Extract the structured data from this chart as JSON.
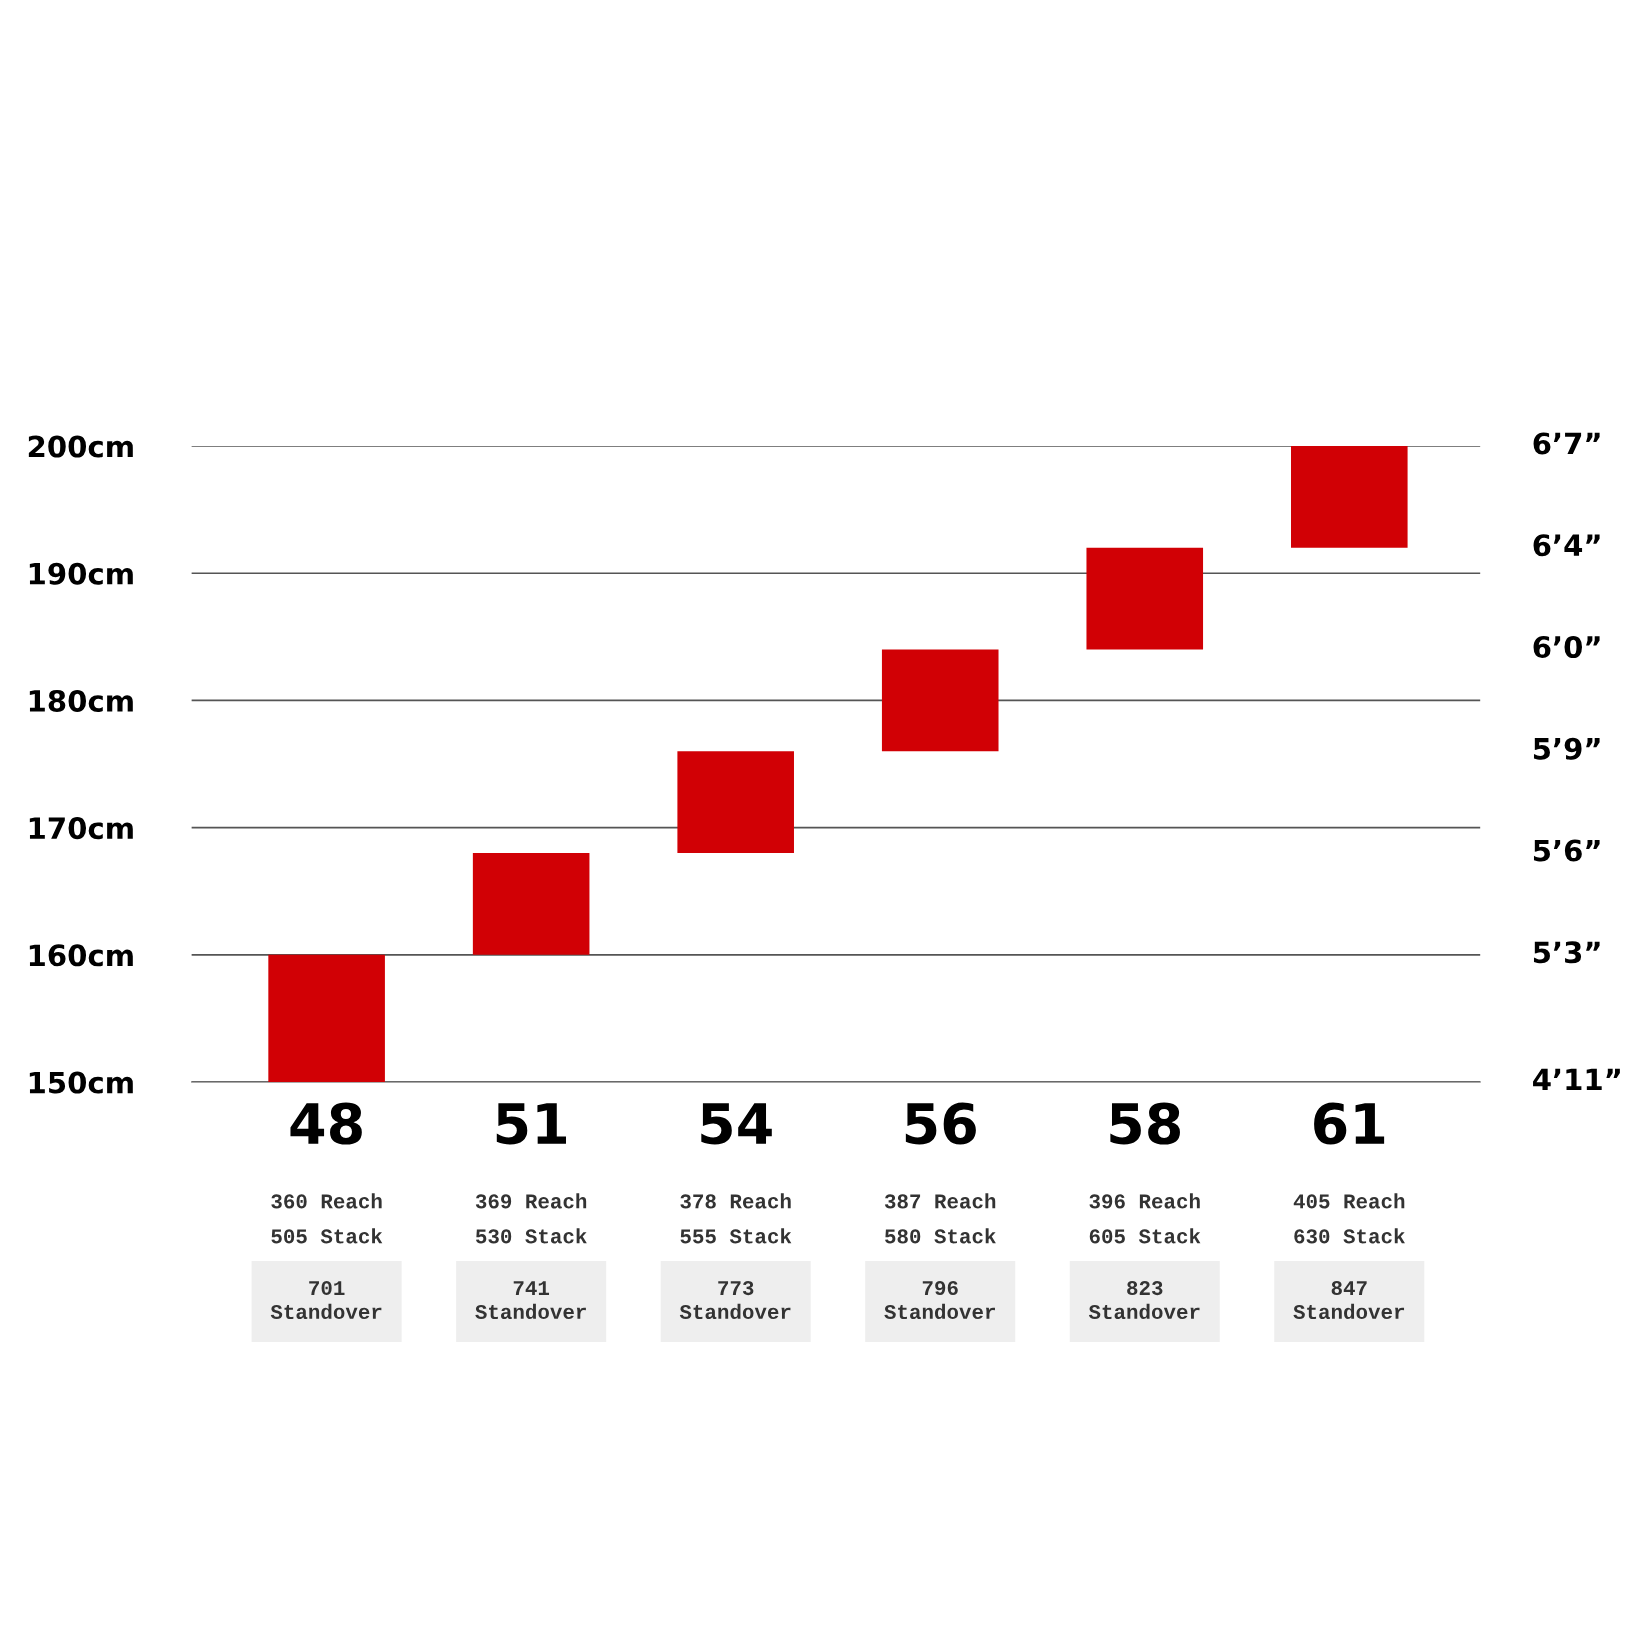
{
  "chart_data": {
    "type": "bar",
    "categories": [
      "48",
      "51",
      "54",
      "56",
      "58",
      "61"
    ],
    "base": [
      150,
      160,
      168,
      176,
      184,
      192
    ],
    "values": [
      10,
      8,
      8,
      8,
      8,
      8
    ],
    "color": "#d10005",
    "ylim": [
      150,
      200
    ],
    "yticks": [
      {
        "value": 150,
        "label": "150cm"
      },
      {
        "value": 160,
        "label": "160cm"
      },
      {
        "value": 170,
        "label": "170cm"
      },
      {
        "value": 180,
        "label": "180cm"
      },
      {
        "value": 190,
        "label": "190cm"
      },
      {
        "value": 200,
        "label": "200cm"
      }
    ],
    "grid": "y",
    "annotations": [
      "4’11”",
      "5’3”",
      "5’6”",
      "5’9”",
      "6’0”",
      "6’4”",
      "6’7”",
      "360 Reach",
      "505 Stack",
      "701\nStandover",
      "369 Reach",
      "530 Stack",
      "741\nStandover",
      "378 Reach",
      "555 Stack",
      "773\nStandover",
      "387 Reach",
      "580 Stack",
      "796\nStandover",
      "396 Reach",
      "605 Stack",
      "823\nStandover",
      "405 Reach",
      "630 Stack",
      "847\nStandover"
    ]
  }
}
